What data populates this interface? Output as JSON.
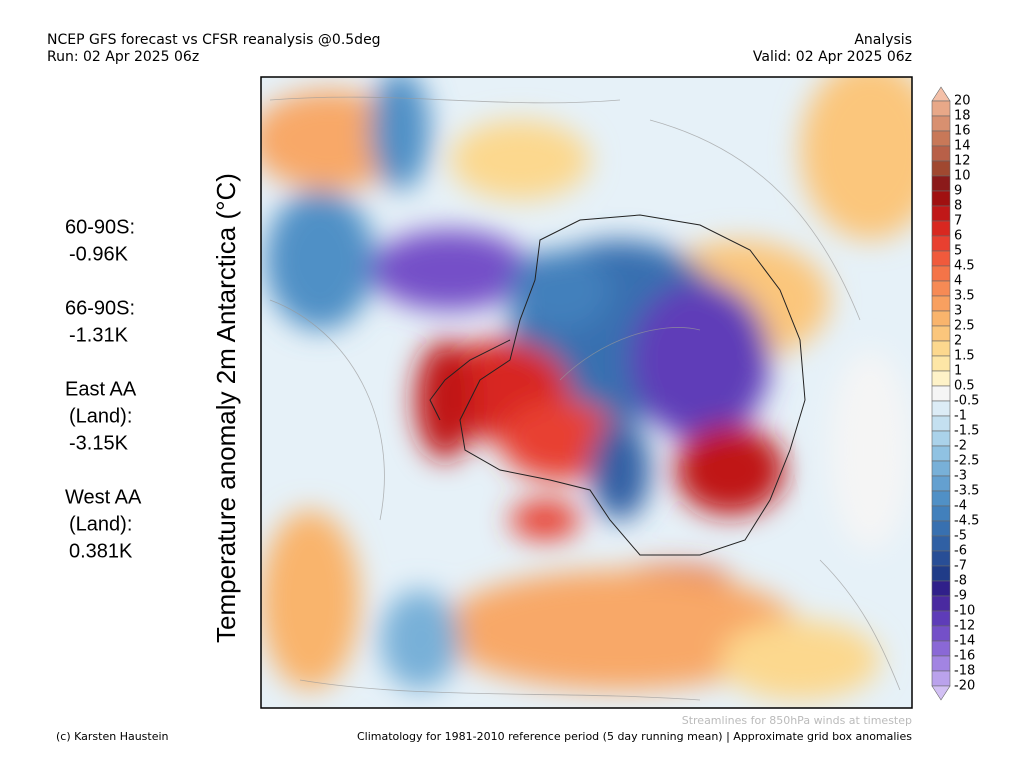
{
  "header": {
    "left": [
      "NCEP GFS forecast vs CFSR reanalysis @0.5deg",
      "Run: 02 Apr 2025 06z"
    ],
    "right": [
      "Analysis",
      "Valid: 02 Apr 2025 06z"
    ]
  },
  "axis_label": "Temperature anomaly 2m Antarctica (°C)",
  "stats": [
    {
      "lines": [
        "60-90S:",
        "-0.96K"
      ]
    },
    {
      "lines": [
        "66-90S:",
        "-1.31K"
      ]
    },
    {
      "lines": [
        "East AA",
        "(Land):",
        "-3.15K"
      ]
    },
    {
      "lines": [
        "West AA",
        "(Land):",
        "0.381K"
      ]
    }
  ],
  "colorbar": {
    "ticks": [
      20,
      18,
      16,
      14,
      12,
      10,
      9,
      8,
      7,
      6,
      5,
      4.5,
      4,
      3.5,
      3,
      2.5,
      2,
      1.5,
      1,
      0.5,
      -0.5,
      -1,
      -1.5,
      -2,
      -2.5,
      -3,
      -3.5,
      -4,
      -4.5,
      -5,
      -6,
      -7,
      -8,
      -9,
      -10,
      -12,
      -14,
      -16,
      -18,
      -20
    ],
    "colors": [
      "#f4c0a8",
      "#e8a888",
      "#d89070",
      "#c87858",
      "#b86048",
      "#a04830",
      "#8b1a1a",
      "#a01010",
      "#c01818",
      "#d82820",
      "#e84030",
      "#f05a3c",
      "#f47448",
      "#f68a55",
      "#f8a060",
      "#f9b46c",
      "#fbc67c",
      "#fcd88e",
      "#fde6a6",
      "#fef2c8",
      "#f5f5f5",
      "#dcecf6",
      "#c4e0f0",
      "#aad2ea",
      "#90c2e2",
      "#78b0d8",
      "#64a0d0",
      "#5090c6",
      "#4280bc",
      "#3870b0",
      "#3060a4",
      "#284e96",
      "#203c88",
      "#30208a",
      "#4a2aa0",
      "#5e3cb8",
      "#7450c8",
      "#8a68d6",
      "#a284e2",
      "#baa2ec",
      "#d2c0f4"
    ]
  },
  "footer": {
    "credit": "(c) Karsten Haustein",
    "streamlines": "Streamlines for 850hPa winds at timestep",
    "note": "Climatology for 1981-2010 reference period (5 day running mean) | Approximate grid box anomalies"
  }
}
